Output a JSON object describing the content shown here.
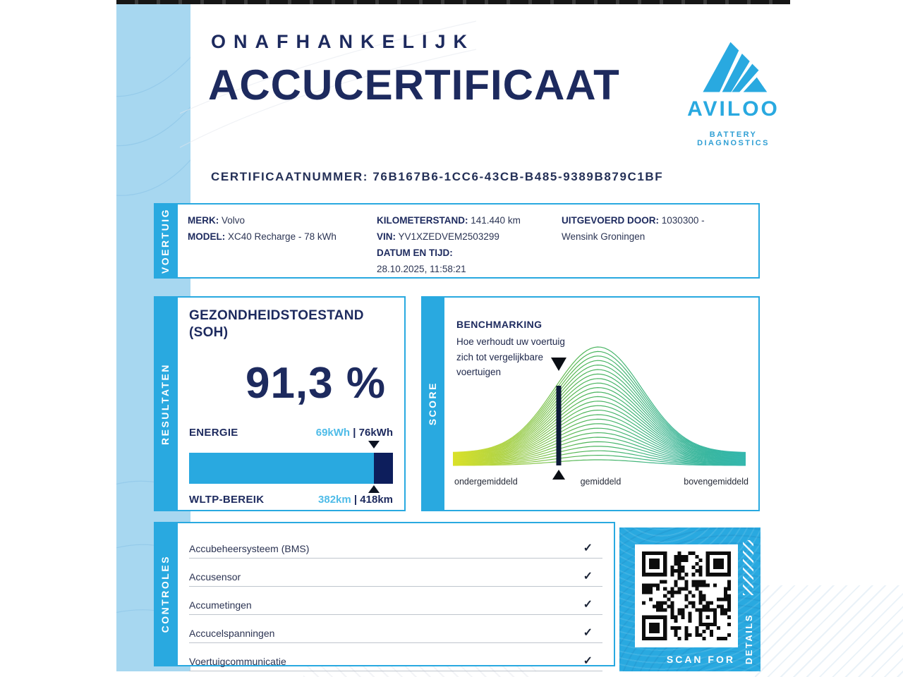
{
  "header": {
    "kicker": "ONAFHANKELIJK",
    "title": "ACCUCERTIFICAAT",
    "cert_label": "CERTIFICAATNUMMER:",
    "cert_number": "76B167B6-1CC6-43CB-B485-9389B879C1BF"
  },
  "logo": {
    "brand": "AVILOO",
    "tagline": "BATTERY DIAGNOSTICS"
  },
  "vehicle": {
    "tab": "VOERTUIG",
    "merk_label": "MERK:",
    "merk": "Volvo",
    "model_label": "MODEL:",
    "model": "XC40 Recharge - 78 kWh",
    "km_label": "KILOMETERSTAND:",
    "km": "141.440 km",
    "vin_label": "VIN:",
    "vin": "YV1XZEDVEM2503299",
    "datetime_label": "DATUM EN TIJD:",
    "datetime": "28.10.2025, 11:58:21",
    "performed_label": "UITGEVOERD DOOR:",
    "performed": "1030300 - Wensink Groningen"
  },
  "results": {
    "tab": "RESULTATEN",
    "soh_title_line1": "GEZONDHEIDSTOESTAND",
    "soh_title_line2": "(SOH)",
    "soh_value": "91,3 %",
    "energy_label": "ENERGIE",
    "energy_current": "69kWh",
    "energy_total": "| 76kWh",
    "range_label": "WLTP-BEREIK",
    "range_current": "382km",
    "range_total": "| 418km",
    "bar_light_pct": 90.8
  },
  "score": {
    "tab": "SCORE",
    "title": "BENCHMARKING",
    "description": "Hoe verhoudt uw voertuig zich tot vergelijkbare voertuigen",
    "axis_left": "ondergemiddeld",
    "axis_center": "gemiddeld",
    "axis_right": "bovengemiddeld",
    "marker_pct": 36
  },
  "controls": {
    "tab": "CONTROLES",
    "items": [
      {
        "label": "Accubeheersysteem (BMS)",
        "status": "✓"
      },
      {
        "label": "Accusensor",
        "status": "✓"
      },
      {
        "label": "Accumetingen",
        "status": "✓"
      },
      {
        "label": "Accucelspanningen",
        "status": "✓"
      },
      {
        "label": "Voertuigcommunicatie",
        "status": "✓"
      }
    ]
  },
  "qr": {
    "scan_label": "SCAN FOR",
    "details_label": "DETAILS"
  },
  "colors": {
    "accent": "#29A9E0",
    "navy": "#1D2A5E",
    "band": "#A7D7F0",
    "bar_dark": "#0D1E5C",
    "value_light": "#4FBCE8",
    "curve_yellow": "#D9E021",
    "curve_green": "#3DAE49",
    "curve_teal": "#2DB5AB"
  },
  "chart_data": {
    "type": "area",
    "title": "BENCHMARKING",
    "x_labels": [
      "ondergemiddeld",
      "gemiddeld",
      "bovengemiddeld"
    ],
    "marker_position_pct": 36,
    "peak_position_pct": 49,
    "description": "Bell-curve distribution of comparable vehicles; this vehicle's marker sits between ondergemiddeld and gemiddeld, just left of the peak"
  }
}
